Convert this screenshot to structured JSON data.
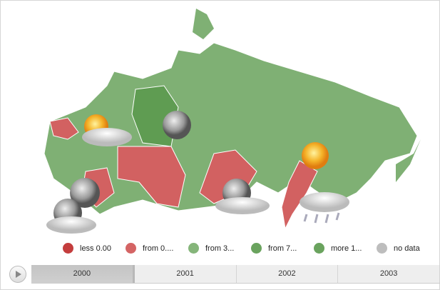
{
  "legend": [
    {
      "label": "less 0.00",
      "color": "#c43d3d"
    },
    {
      "label": "from 0....",
      "color": "#d46464"
    },
    {
      "label": "from 3...",
      "color": "#85b57a"
    },
    {
      "label": "from 7...",
      "color": "#6aa35e"
    },
    {
      "label": "more 1...",
      "color": "#6aa35e"
    },
    {
      "label": "no data",
      "color": "#bdbdbd"
    }
  ],
  "timeline": {
    "years": [
      "2000",
      "2001",
      "2002",
      "2003"
    ],
    "selected": "2000"
  },
  "colors": {
    "green": "#7fb074",
    "dark_green": "#5f9c52",
    "red": "#d26161"
  },
  "weather_icons": [
    "sun-cloud-icon",
    "moon-icon",
    "moon-icon",
    "moon-cloud-icon",
    "moon-cloud-icon",
    "sun-icon",
    "cloud-rain-icon"
  ]
}
